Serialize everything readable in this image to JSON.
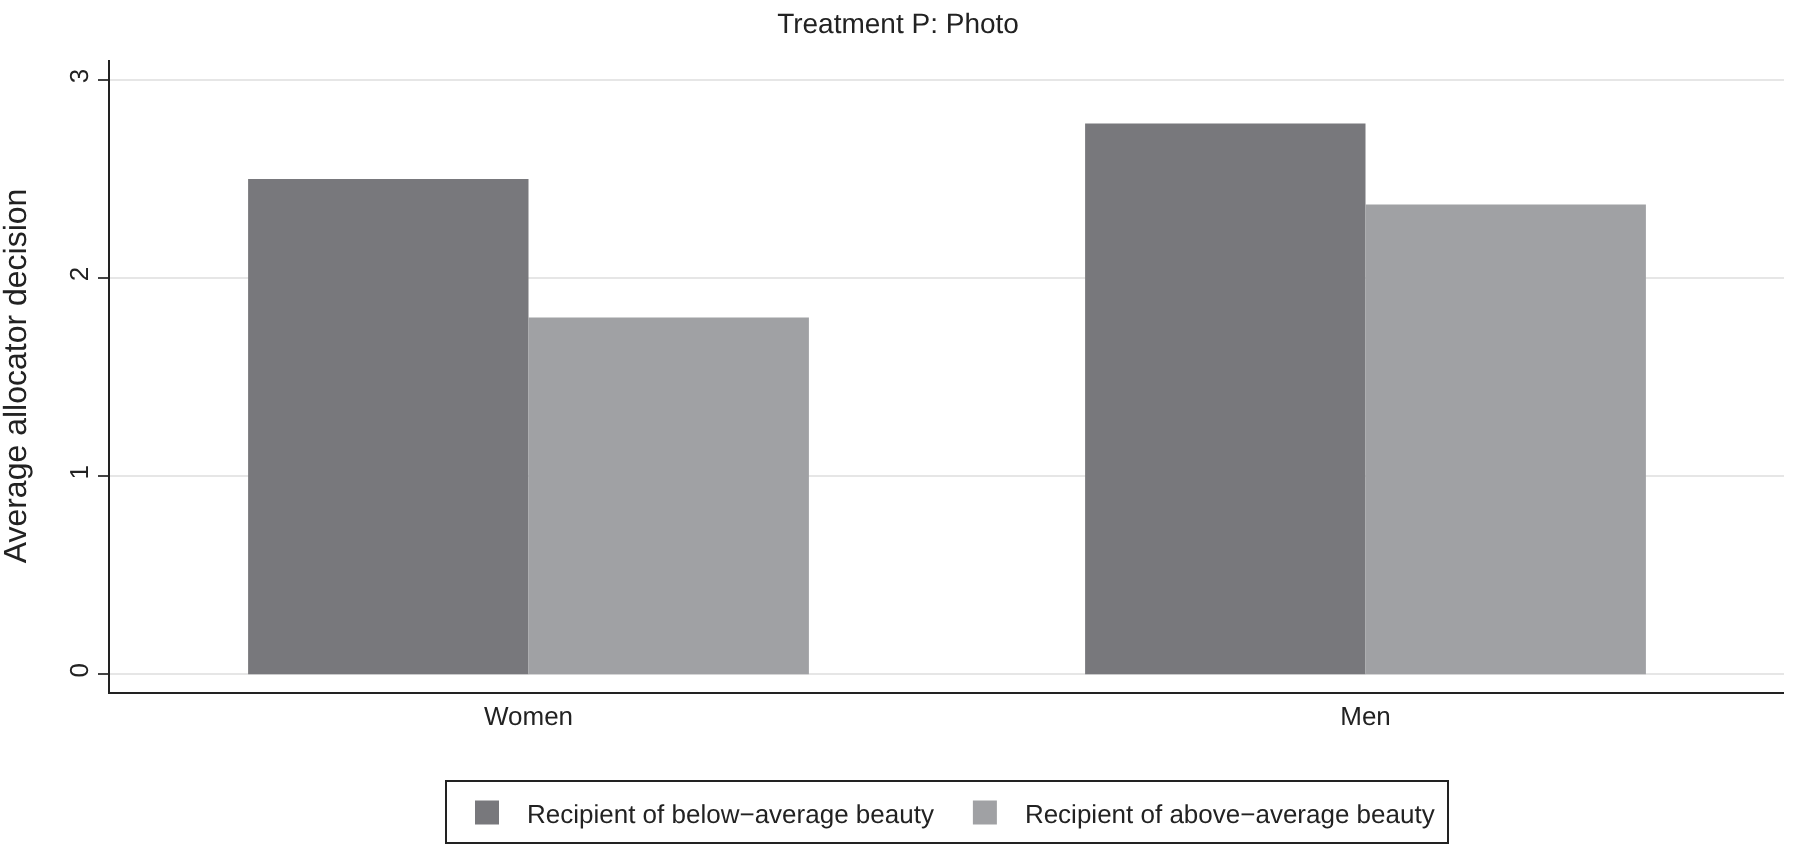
{
  "chart_data": {
    "type": "bar",
    "title": "Treatment P: Photo",
    "ylabel": "Average allocator decision",
    "categories": [
      "Women",
      "Men"
    ],
    "series": [
      {
        "name": "Recipient of below−average beauty",
        "color": "#78787c",
        "values": [
          2.5,
          2.78
        ]
      },
      {
        "name": "Recipient of above−average beauty",
        "color": "#a0a1a4",
        "values": [
          1.8,
          2.37
        ]
      }
    ],
    "ylim": [
      -0.09,
      3.1
    ],
    "yticks": [
      0,
      1,
      2,
      3
    ],
    "grid": "y",
    "legend": "bottom"
  }
}
